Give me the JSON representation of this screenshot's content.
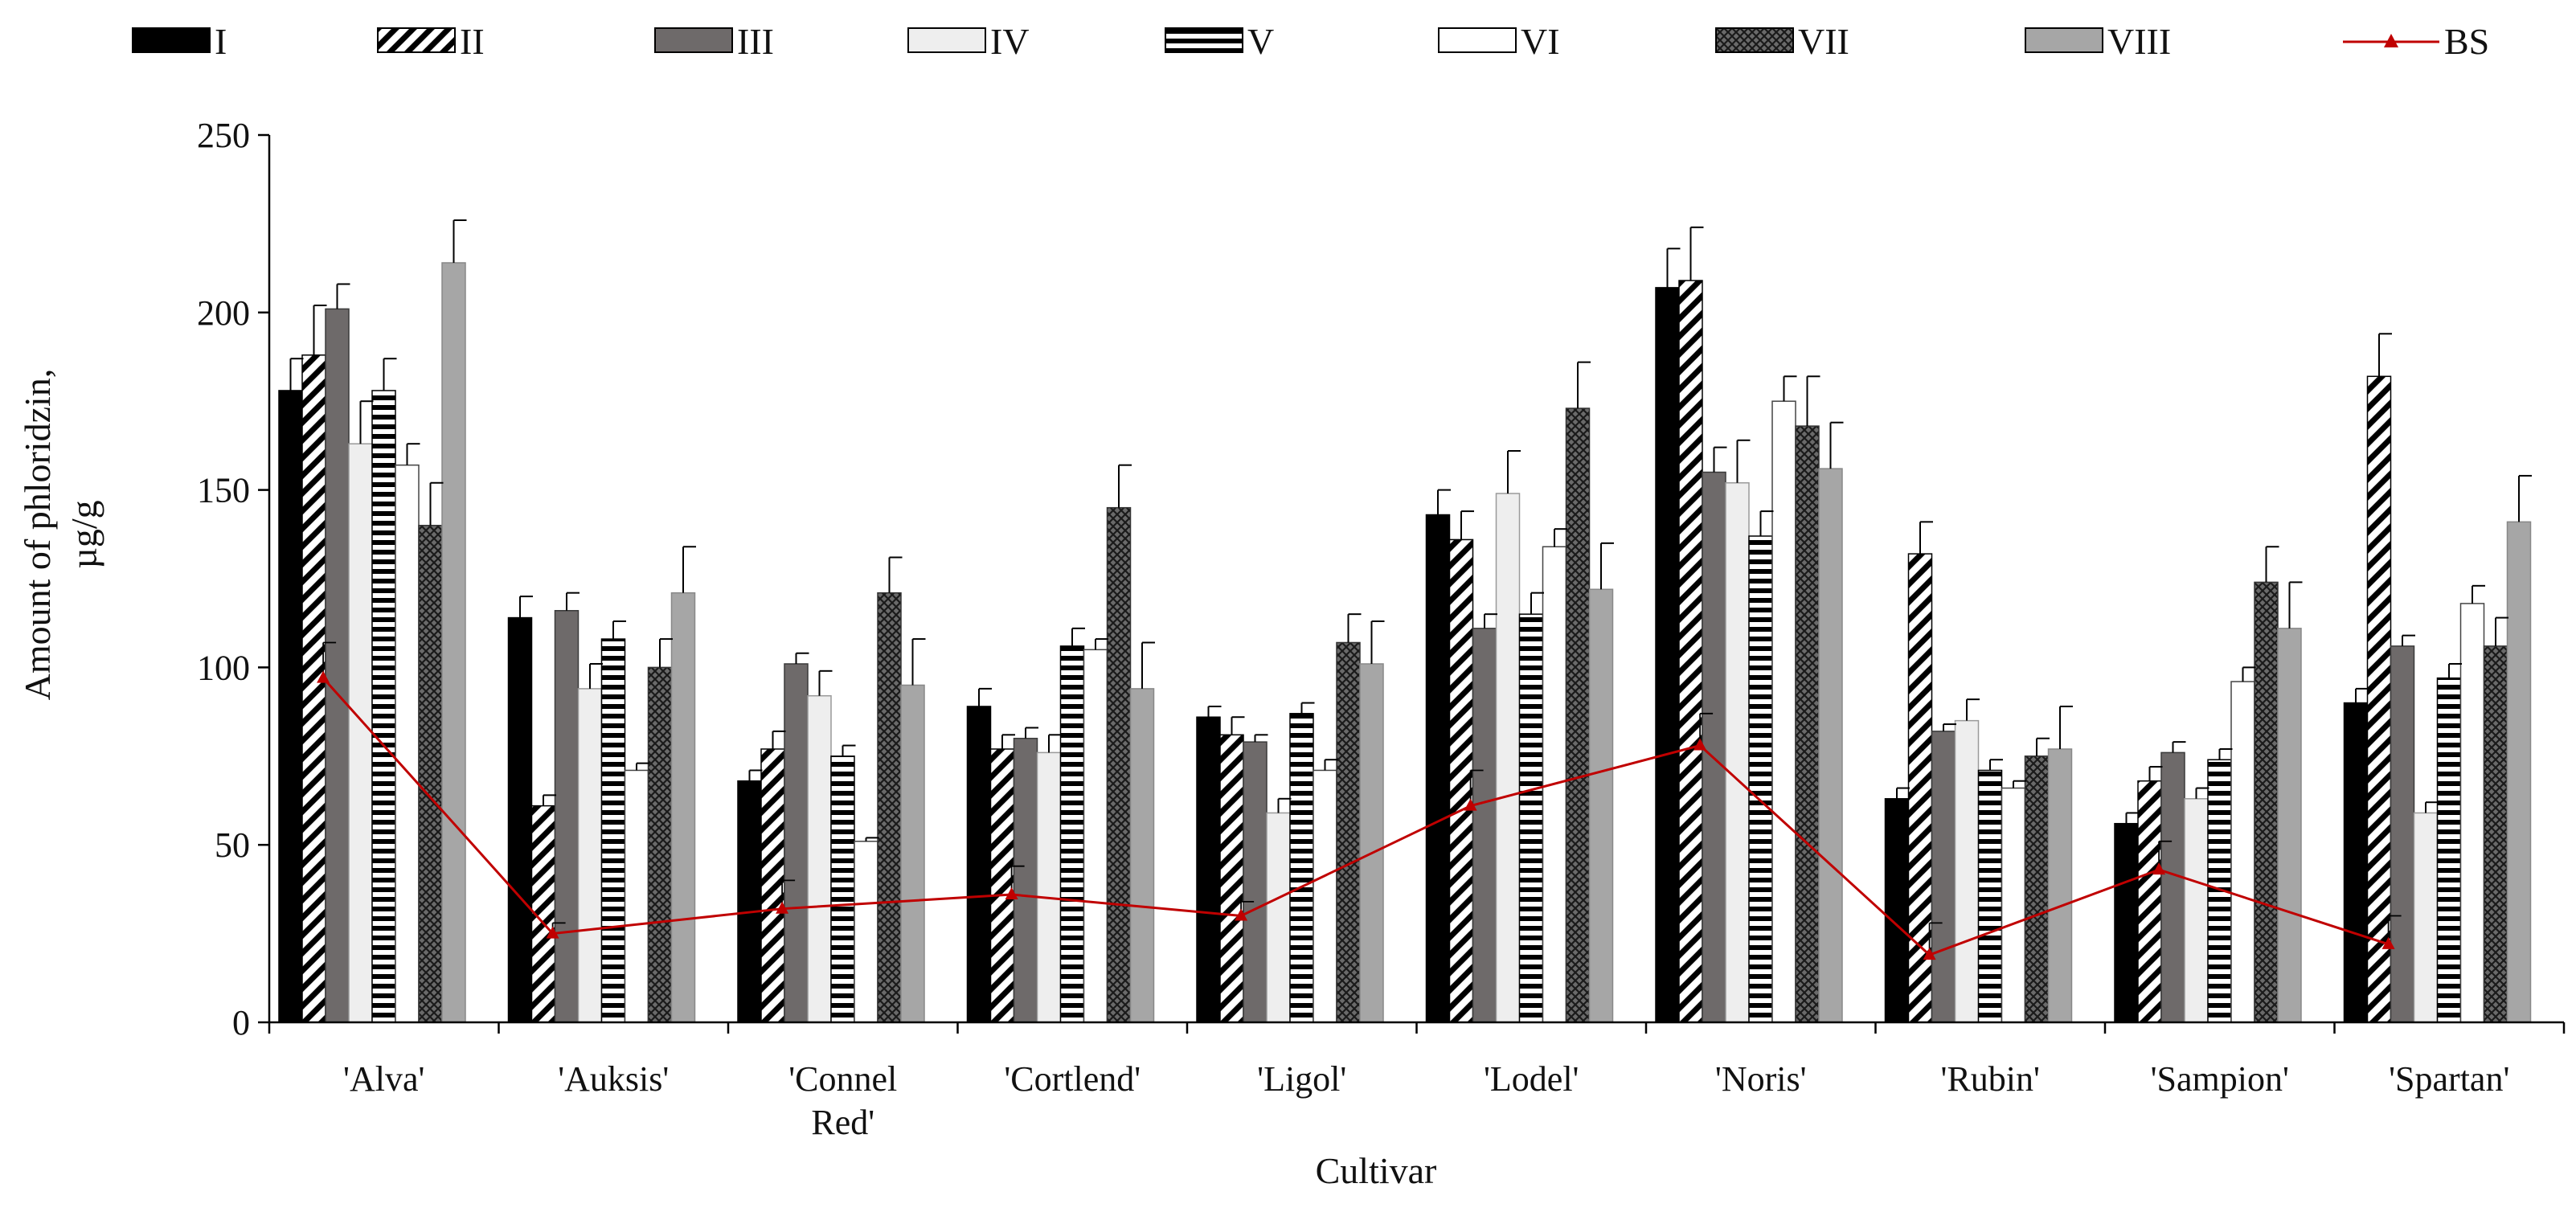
{
  "chart_data": {
    "type": "bar",
    "title": "",
    "xlabel": "Cultivar",
    "ylabel_lines": [
      "Amount of phloridzin,",
      "µg/g"
    ],
    "ylim": [
      0,
      250
    ],
    "yticks": [
      0,
      50,
      100,
      150,
      200,
      250
    ],
    "grid": false,
    "legend_position": "top",
    "categories": [
      [
        "'Alva'"
      ],
      [
        "'Auksis'"
      ],
      [
        "'Connel",
        "Red'"
      ],
      [
        "'Cortlend'"
      ],
      [
        "'Ligol'"
      ],
      [
        "'Lodel'"
      ],
      [
        "'Noris'"
      ],
      [
        "'Rubin'"
      ],
      [
        "'Sampion'"
      ],
      [
        "'Spartan'"
      ]
    ],
    "series": [
      {
        "name": "I",
        "pattern": "solid-black",
        "values": [
          178,
          114,
          68,
          89,
          86,
          143,
          207,
          63,
          56,
          90
        ],
        "errors": [
          9,
          6,
          3,
          5,
          3,
          7,
          11,
          3,
          3,
          4
        ]
      },
      {
        "name": "II",
        "pattern": "diagonal",
        "values": [
          188,
          61,
          77,
          77,
          81,
          136,
          209,
          132,
          68,
          182
        ],
        "errors": [
          14,
          3,
          5,
          4,
          5,
          8,
          15,
          9,
          4,
          12
        ]
      },
      {
        "name": "III",
        "pattern": "dark-gray",
        "values": [
          201,
          116,
          101,
          80,
          79,
          111,
          155,
          82,
          76,
          106
        ],
        "errors": [
          7,
          5,
          3,
          3,
          2,
          4,
          7,
          2,
          3,
          3
        ]
      },
      {
        "name": "IV",
        "pattern": "light-gray",
        "values": [
          163,
          94,
          92,
          76,
          59,
          149,
          152,
          85,
          63,
          59
        ],
        "errors": [
          12,
          7,
          7,
          5,
          4,
          12,
          12,
          6,
          3,
          3
        ]
      },
      {
        "name": "V",
        "pattern": "horizontal",
        "values": [
          178,
          108,
          75,
          106,
          87,
          115,
          137,
          71,
          74,
          97
        ],
        "errors": [
          9,
          5,
          3,
          5,
          3,
          6,
          7,
          3,
          3,
          4
        ]
      },
      {
        "name": "VI",
        "pattern": "white",
        "values": [
          157,
          71,
          51,
          105,
          71,
          134,
          175,
          66,
          96,
          118
        ],
        "errors": [
          6,
          2,
          1,
          3,
          3,
          5,
          7,
          2,
          4,
          5
        ]
      },
      {
        "name": "VII",
        "pattern": "crosshatch",
        "values": [
          140,
          100,
          121,
          145,
          107,
          173,
          168,
          75,
          124,
          106
        ],
        "errors": [
          12,
          8,
          10,
          12,
          8,
          13,
          14,
          5,
          10,
          8
        ]
      },
      {
        "name": "VIII",
        "pattern": "mid-gray",
        "values": [
          214,
          121,
          95,
          94,
          101,
          122,
          156,
          77,
          111,
          141
        ],
        "errors": [
          12,
          13,
          13,
          13,
          12,
          13,
          13,
          12,
          13,
          13
        ]
      }
    ],
    "line_series": {
      "name": "BS",
      "color": "#c00000",
      "values": [
        97,
        25,
        32,
        36,
        30,
        61,
        78,
        19,
        43,
        22
      ],
      "errors": [
        10,
        3,
        8,
        8,
        4,
        10,
        9,
        9,
        8,
        8
      ]
    }
  }
}
